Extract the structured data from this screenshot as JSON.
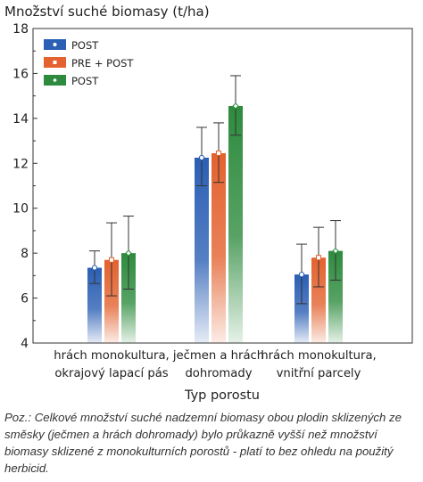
{
  "chart_data": {
    "type": "bar",
    "title": "Množství suché biomasy (t/ha)",
    "xlabel": "Typ porostu",
    "ylabel": "",
    "ylim": [
      4,
      18
    ],
    "yticks": [
      4,
      6,
      8,
      10,
      12,
      14,
      16,
      18
    ],
    "grid": false,
    "legend_position": "top-left",
    "categories": [
      [
        "hrách monokultura,",
        "okrajový lapací pás"
      ],
      [
        "ječmen a hrách",
        "dohromady"
      ],
      [
        "hrách monokultura,",
        "vnitřní parcely"
      ]
    ],
    "series": [
      {
        "name": "POST",
        "color": "#2b5fb4",
        "marker": "circle",
        "values": [
          7.35,
          12.25,
          7.05
        ],
        "err_low": [
          6.65,
          11.0,
          5.75
        ],
        "err_high": [
          8.1,
          13.6,
          8.4
        ]
      },
      {
        "name": "PRE + POST",
        "color": "#e3622f",
        "marker": "square",
        "values": [
          7.7,
          12.45,
          7.8
        ],
        "err_low": [
          6.1,
          11.15,
          6.5
        ],
        "err_high": [
          9.35,
          13.8,
          9.15
        ]
      },
      {
        "name": "POST",
        "color": "#2e8b3e",
        "marker": "diamond",
        "values": [
          8.0,
          14.55,
          8.1
        ],
        "err_low": [
          6.4,
          13.25,
          6.8
        ],
        "err_high": [
          9.65,
          15.9,
          9.45
        ]
      }
    ]
  },
  "note": "Poz.: Celkové množství suché nadzemní biomasy obou plodin sklizených ze směsky (ječmen a hrách dohromady) bylo průkazně vyšší než množství biomasy sklizené z monokulturních porostů - platí to bez ohledu na použitý herbicid."
}
